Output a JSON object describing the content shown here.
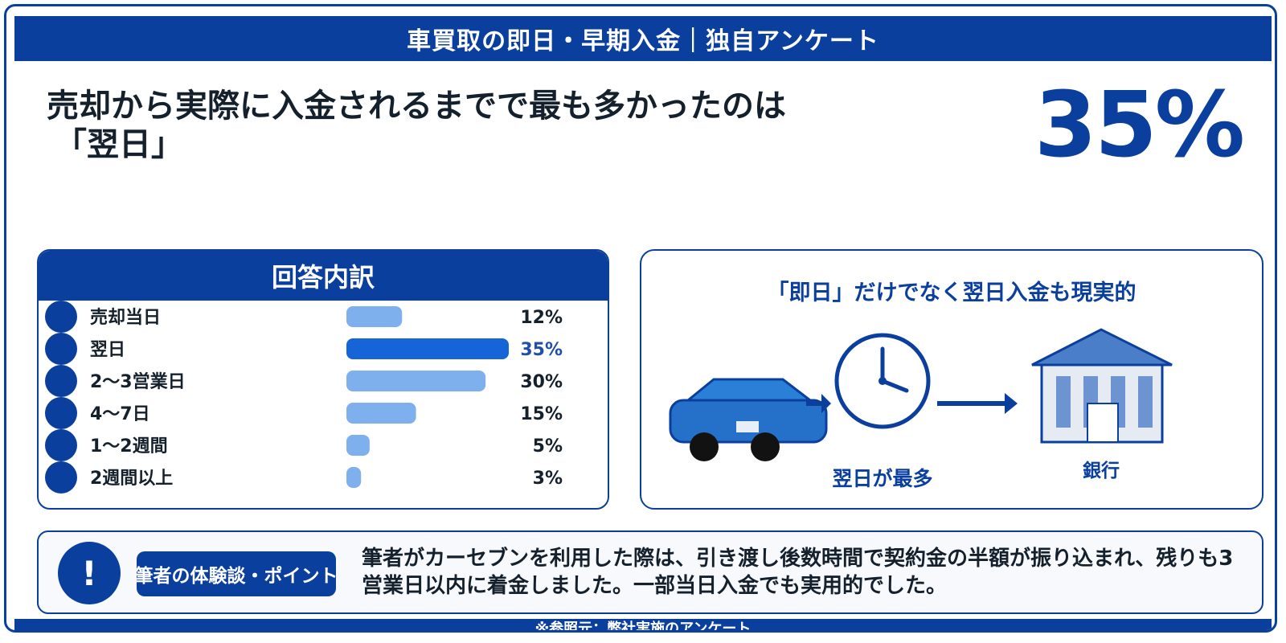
{
  "header": {
    "title": "車買取の即日・早期入金｜独自アンケート"
  },
  "headline": {
    "line1": "売却から実際に入金されるまでで最も多かったのは",
    "line2": "「翌日」"
  },
  "highlight": {
    "value": "35%"
  },
  "breakdown": {
    "title": "回答内訳"
  },
  "chart_data": {
    "type": "bar",
    "orientation": "horizontal",
    "title": "回答内訳",
    "categories": [
      "売却当日",
      "翌日",
      "2〜3営業日",
      "4〜7日",
      "1〜2週間",
      "2週間以上"
    ],
    "values": [
      12,
      35,
      30,
      15,
      5,
      3
    ],
    "value_labels": [
      "12%",
      "35%",
      "30%",
      "15%",
      "5%",
      "3%"
    ],
    "unit": "%",
    "xlim": [
      0,
      35
    ],
    "highlight_index": 1,
    "colors": {
      "bar": "#7fb0ee",
      "highlight": "#1565d8",
      "highlight_text": "#1f4fa8",
      "bullet": "#0a3f9e"
    }
  },
  "flow": {
    "title": "「即日」だけでなく翌日入金も現実的",
    "step_label": "翌日が最多",
    "bank_label": "銀行",
    "icons": [
      "car-icon",
      "clock-icon",
      "bank-icon"
    ]
  },
  "note": {
    "icon": "!",
    "tag": "筆者の体験談・ポイント",
    "text": "筆者がカーセブンを利用した際は、引き渡し後数時間で契約金の半額が振り込まれ、残りも3営業日以内に着金しました。一部当日入金でも実用的でした。"
  },
  "footer": {
    "source": "※参照元：弊社実施のアンケート"
  },
  "theme": {
    "primary": "#0a3f9e",
    "accent_light": "#7fb0ee"
  }
}
